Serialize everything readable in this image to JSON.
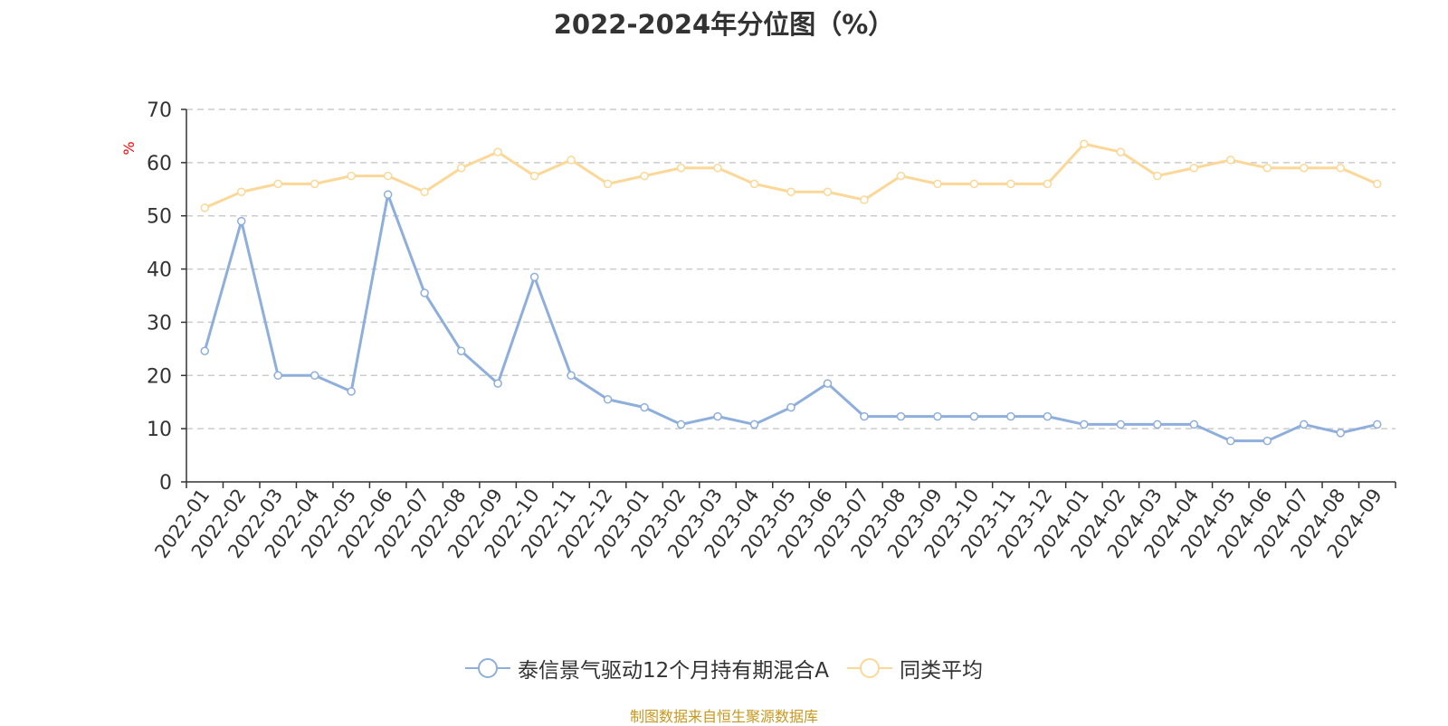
{
  "chart_data": {
    "type": "line",
    "title": "2022-2024年分位图（%）",
    "ylabel": "%",
    "xlabel": "",
    "ylim": [
      0,
      70
    ],
    "yticks": [
      0,
      10,
      20,
      30,
      40,
      50,
      60,
      70
    ],
    "grid": "horizontal dashed",
    "legend_position": "bottom-center",
    "categories": [
      "2022-01",
      "2022-02",
      "2022-03",
      "2022-04",
      "2022-05",
      "2022-06",
      "2022-07",
      "2022-08",
      "2022-09",
      "2022-10",
      "2022-11",
      "2022-12",
      "2023-01",
      "2023-02",
      "2023-03",
      "2023-04",
      "2023-05",
      "2023-06",
      "2023-07",
      "2023-08",
      "2023-09",
      "2023-10",
      "2023-11",
      "2023-12",
      "2024-01",
      "2024-02",
      "2024-03",
      "2024-04",
      "2024-05",
      "2024-06",
      "2024-07",
      "2024-08",
      "2024-09"
    ],
    "series": [
      {
        "name": "泰信景气驱动12个月持有期混合A",
        "color": "#8eaedb",
        "values": [
          24.6,
          49,
          20,
          20,
          17,
          54,
          35.5,
          24.6,
          18.5,
          38.5,
          20,
          15.5,
          14,
          10.8,
          12.3,
          10.8,
          14,
          18.5,
          12.3,
          12.3,
          12.3,
          12.3,
          12.3,
          12.3,
          10.8,
          10.8,
          10.8,
          10.8,
          7.7,
          7.7,
          10.8,
          9.2,
          10.8
        ]
      },
      {
        "name": "同类平均",
        "color": "#fbd897",
        "values": [
          51.5,
          54.5,
          56,
          56,
          57.5,
          57.5,
          54.5,
          59,
          62,
          57.5,
          60.5,
          56,
          57.5,
          59,
          59,
          56,
          54.5,
          54.5,
          53,
          57.5,
          56,
          56,
          56,
          56,
          63.5,
          62,
          57.5,
          59,
          60.5,
          59,
          59,
          59,
          56
        ]
      }
    ]
  },
  "source": {
    "text": "制图数据来自恒生聚源数据库",
    "color": "#c8981e"
  },
  "ylabel_color": "#ff0000"
}
